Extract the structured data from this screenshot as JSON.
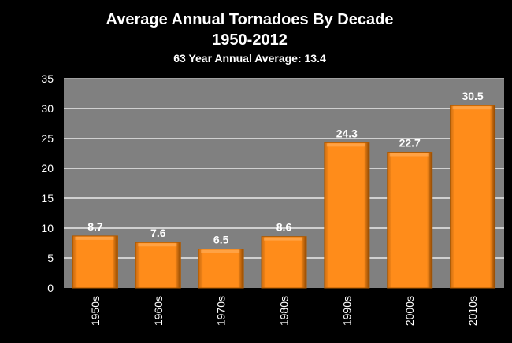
{
  "chart_data": {
    "type": "bar",
    "title": "Average Annual Tornadoes By Decade",
    "subtitle": "1950-2012",
    "annotation": "63 Year Annual Average:  13.4",
    "categories": [
      "1950s",
      "1960s",
      "1970s",
      "1980s",
      "1990s",
      "2000s",
      "2010s"
    ],
    "values": [
      8.7,
      7.6,
      6.5,
      8.6,
      24.3,
      22.7,
      30.5
    ],
    "data_labels": [
      "8.7",
      "7.6",
      "6.5",
      "8.6",
      "24.3",
      "22.7",
      "30.5"
    ],
    "xlabel": "",
    "ylabel": "",
    "ylim": [
      0,
      35
    ],
    "yticks": [
      0,
      5,
      10,
      15,
      20,
      25,
      30,
      35
    ],
    "grid": true,
    "colors": {
      "bar": "#ff8c1a",
      "bar_dark": "#a85200",
      "plot_bg": "#808080",
      "background": "#000000",
      "grid": "#ffffff"
    }
  }
}
